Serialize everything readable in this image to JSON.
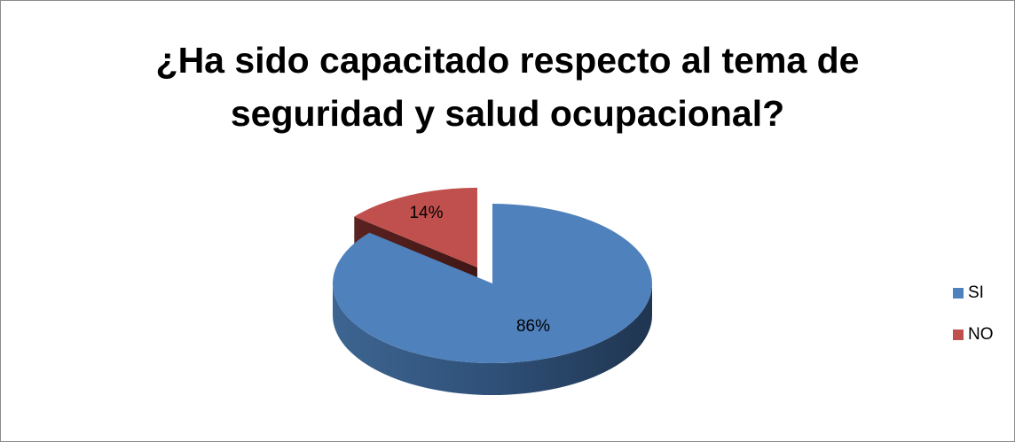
{
  "chart_data": {
    "type": "pie",
    "title": "¿Ha sido capacitado respecto al tema de seguridad y salud ocupacional?",
    "categories": [
      "SI",
      "NO"
    ],
    "values": [
      86,
      14
    ],
    "value_labels": [
      "86%",
      "14%"
    ],
    "colors": [
      "#4f81bd",
      "#c0504d"
    ],
    "legend": "right"
  }
}
